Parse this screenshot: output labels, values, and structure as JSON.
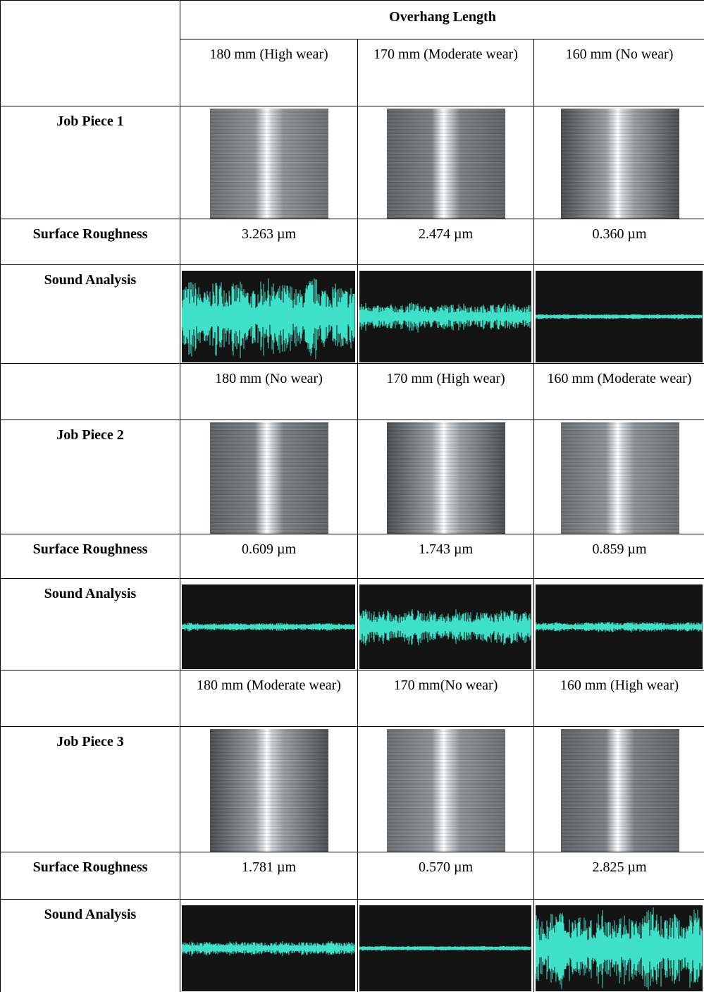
{
  "table": {
    "header": "Overhang Length",
    "job_pieces": [
      {
        "title": "Job Piece 1",
        "conditions": [
          "180 mm (High wear)",
          "170 mm (Moderate wear)",
          "160 mm (No wear)"
        ],
        "roughness_label": "Surface Roughness",
        "roughness": [
          "3.263 µm",
          "2.474 µm",
          "0.360 µm"
        ],
        "sound_label": "Sound Analysis"
      },
      {
        "title": "Job Piece 2",
        "conditions": [
          "180 mm (No wear)",
          "170 mm (High wear)",
          "160 mm (Moderate wear)"
        ],
        "roughness_label": "Surface Roughness",
        "roughness": [
          "0.609 µm",
          "1.743 µm",
          "0.859 µm"
        ],
        "sound_label": "Sound Analysis"
      },
      {
        "title": "Job Piece 3",
        "conditions": [
          "180 mm (Moderate wear)",
          "170 mm(No wear)",
          "160 mm (High wear)"
        ],
        "roughness_label": "Surface Roughness",
        "roughness": [
          "1.781 µm",
          "0.570 µm",
          "2.825 µm"
        ],
        "sound_label": "Sound Analysis"
      }
    ]
  }
}
